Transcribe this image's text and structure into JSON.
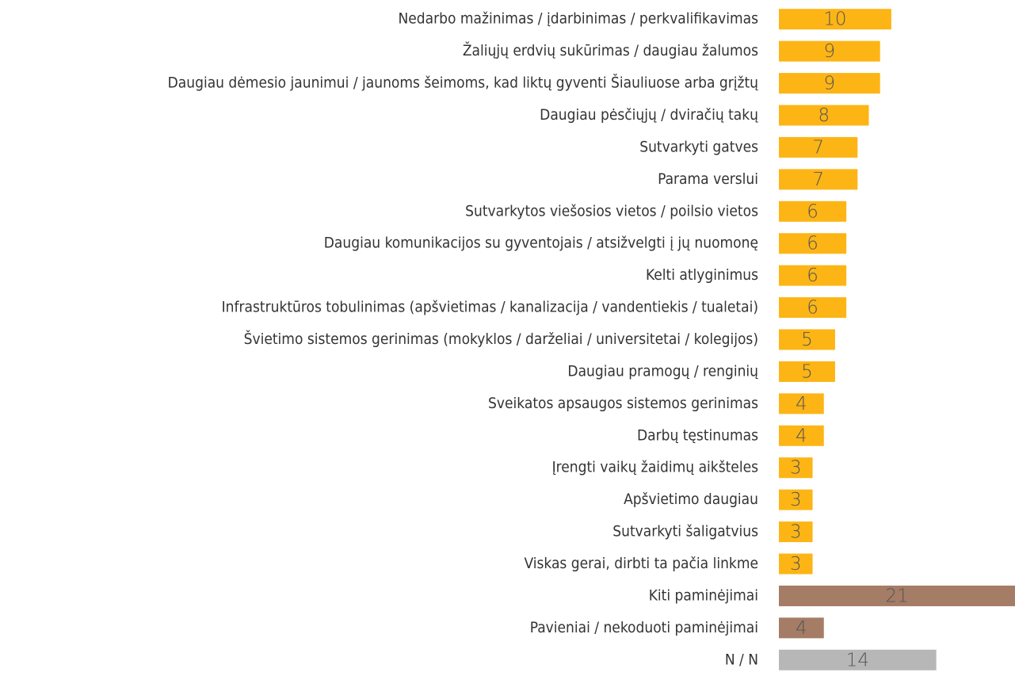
{
  "chart_data": {
    "type": "barh",
    "categories": [
      "Nedarbo mažinimas / įdarbinimas / perkvalifikavimas",
      "Žaliųjų erdvių sukūrimas / daugiau žalumos",
      "Daugiau dėmesio jaunimui / jaunoms šeimoms, kad liktų gyventi Šiauliuose arba grįžtų",
      "Daugiau pėsčiųjų / dviračių takų",
      "Sutvarkyti gatves",
      "Parama verslui",
      "Sutvarkytos viešosios vietos / poilsio vietos",
      "Daugiau komunikacijos su gyventojais / atsižvelgti į jų nuomonę",
      "Kelti atlyginimus",
      "Infrastruktūros tobulinimas (apšvietimas / kanalizacija / vandentiekis / tualetai)",
      "Švietimo sistemos gerinimas (mokyklos / darželiai / universitetai / kolegijos)",
      "Daugiau pramogų / renginių",
      "Sveikatos apsaugos sistemos gerinimas",
      "Darbų tęstinumas",
      "Įrengti vaikų žaidimų aikšteles",
      "Apšvietimo daugiau",
      "Sutvarkyti šaligatvius",
      "Viskas gerai, dirbti ta pačia linkme",
      "Kiti paminėjimai",
      "Pavieniai / nekoduoti paminėjimai",
      "N / N"
    ],
    "values": [
      10,
      9,
      9,
      8,
      7,
      7,
      6,
      6,
      6,
      6,
      5,
      5,
      4,
      4,
      3,
      3,
      3,
      3,
      21,
      4,
      14
    ],
    "colors": [
      "#FDB515",
      "#FDB515",
      "#FDB515",
      "#FDB515",
      "#FDB515",
      "#FDB515",
      "#FDB515",
      "#FDB515",
      "#FDB515",
      "#FDB515",
      "#FDB515",
      "#FDB515",
      "#FDB515",
      "#FDB515",
      "#FDB515",
      "#FDB515",
      "#FDB515",
      "#FDB515",
      "#A57C65",
      "#A57C65",
      "#B7B7B7"
    ],
    "xlim": [
      0,
      21
    ]
  }
}
